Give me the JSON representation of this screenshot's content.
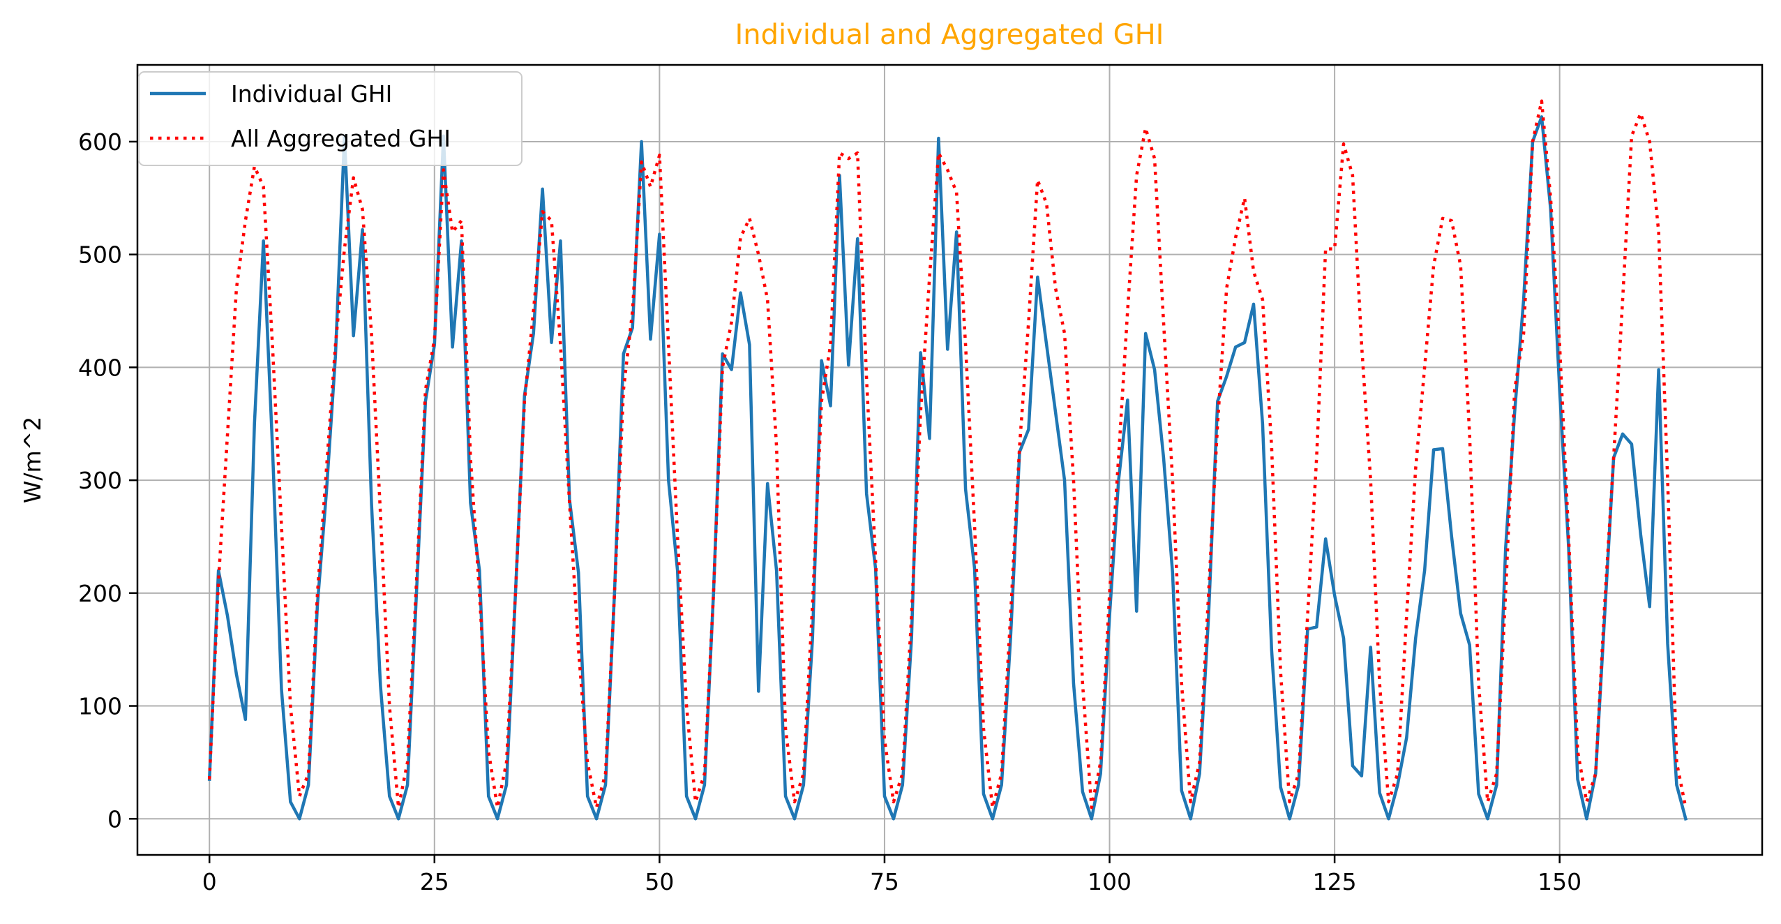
{
  "chart_data": {
    "type": "line",
    "title": "Individual and Aggregated GHI",
    "title_color": "#ffa500",
    "xlabel": "",
    "ylabel": "W/m^2",
    "xlim": [
      -8,
      172.5
    ],
    "ylim": [
      -32,
      668
    ],
    "xticks": [
      0,
      25,
      50,
      75,
      100,
      125,
      150
    ],
    "yticks": [
      0,
      100,
      200,
      300,
      400,
      500,
      600
    ],
    "grid": true,
    "legend_position": "upper-left",
    "series": [
      {
        "name": "Individual GHI",
        "color": "#1f77b4",
        "style": "solid",
        "x": [
          0,
          1,
          2,
          3,
          4,
          5,
          6,
          7,
          8,
          9,
          10,
          11,
          12,
          13,
          14,
          15,
          16,
          17,
          18,
          19,
          20,
          21,
          22,
          23,
          24,
          25,
          26,
          27,
          28,
          29,
          30,
          31,
          32,
          33,
          34,
          35,
          36,
          37,
          38,
          39,
          40,
          41,
          42,
          43,
          44,
          45,
          46,
          47,
          48,
          49,
          50,
          51,
          52,
          53,
          54,
          55,
          56,
          57,
          58,
          59,
          60,
          61,
          62,
          63,
          64,
          65,
          66,
          67,
          68,
          69,
          70,
          71,
          72,
          73,
          74,
          75,
          76,
          77,
          78,
          79,
          80,
          81,
          82,
          83,
          84,
          85,
          86,
          87,
          88,
          89,
          90,
          91,
          92,
          93,
          94,
          95,
          96,
          97,
          98,
          99,
          100,
          101,
          102,
          103,
          104,
          105,
          106,
          107,
          108,
          109,
          110,
          111,
          112,
          113,
          114,
          115,
          116,
          117,
          118,
          119,
          120,
          121,
          122,
          123,
          124,
          125,
          126,
          127,
          128,
          129,
          130,
          131,
          132,
          133,
          134,
          135,
          136,
          137,
          138,
          139,
          140,
          141,
          142,
          143,
          144,
          145,
          146,
          147,
          148,
          149,
          150,
          151,
          152,
          153,
          154,
          155,
          156,
          157,
          158,
          159,
          160,
          161,
          162,
          163,
          164
        ],
        "values": [
          35,
          220,
          180,
          128,
          88,
          350,
          512,
          330,
          115,
          15,
          0,
          30,
          190,
          290,
          410,
          605,
          428,
          522,
          280,
          118,
          20,
          0,
          30,
          200,
          370,
          420,
          605,
          418,
          512,
          280,
          220,
          20,
          0,
          30,
          200,
          375,
          430,
          558,
          422,
          512,
          283,
          218,
          20,
          0,
          30,
          200,
          412,
          435,
          600,
          425,
          518,
          300,
          220,
          20,
          0,
          30,
          200,
          412,
          398,
          466,
          420,
          113,
          297,
          220,
          20,
          0,
          30,
          160,
          406,
          366,
          570,
          402,
          514,
          288,
          222,
          20,
          0,
          30,
          160,
          413,
          337,
          603,
          416,
          520,
          292,
          222,
          22,
          0,
          30,
          160,
          325,
          345,
          480,
          420,
          360,
          300,
          120,
          24,
          0,
          40,
          180,
          300,
          371,
          184,
          430,
          398,
          320,
          218,
          25,
          0,
          40,
          180,
          370,
          392,
          418,
          422,
          456,
          350,
          150,
          28,
          0,
          30,
          168,
          170,
          248,
          198,
          160,
          47,
          38,
          152,
          23,
          0,
          30,
          72,
          160,
          220,
          327,
          328,
          250,
          182,
          154,
          22,
          0,
          30,
          240,
          360,
          460,
          600,
          622,
          540,
          380,
          240,
          35,
          0,
          40,
          180,
          320,
          341,
          332,
          252,
          188,
          398,
          155,
          30,
          0
        ]
      },
      {
        "name": "All Aggregated GHI",
        "color": "#ff0000",
        "style": "dotted",
        "x": [
          0,
          1,
          2,
          3,
          4,
          5,
          6,
          7,
          8,
          9,
          10,
          11,
          12,
          13,
          14,
          15,
          16,
          17,
          18,
          19,
          20,
          21,
          22,
          23,
          24,
          25,
          26,
          27,
          28,
          29,
          30,
          31,
          32,
          33,
          34,
          35,
          36,
          37,
          38,
          39,
          40,
          41,
          42,
          43,
          44,
          45,
          46,
          47,
          48,
          49,
          50,
          51,
          52,
          53,
          54,
          55,
          56,
          57,
          58,
          59,
          60,
          61,
          62,
          63,
          64,
          65,
          66,
          67,
          68,
          69,
          70,
          71,
          72,
          73,
          74,
          75,
          76,
          77,
          78,
          79,
          80,
          81,
          82,
          83,
          84,
          85,
          86,
          87,
          88,
          89,
          90,
          91,
          92,
          93,
          94,
          95,
          96,
          97,
          98,
          99,
          100,
          101,
          102,
          103,
          104,
          105,
          106,
          107,
          108,
          109,
          110,
          111,
          112,
          113,
          114,
          115,
          116,
          117,
          118,
          119,
          120,
          121,
          122,
          123,
          124,
          125,
          126,
          127,
          128,
          129,
          130,
          131,
          132,
          133,
          134,
          135,
          136,
          137,
          138,
          139,
          140,
          141,
          142,
          143,
          144,
          145,
          146,
          147,
          148,
          149,
          150,
          151,
          152,
          153,
          154,
          155,
          156,
          157,
          158,
          159,
          160,
          161,
          162,
          163,
          164
        ],
        "values": [
          35,
          210,
          340,
          470,
          530,
          578,
          560,
          420,
          260,
          100,
          20,
          40,
          200,
          310,
          420,
          505,
          568,
          540,
          430,
          270,
          100,
          10,
          50,
          210,
          380,
          425,
          575,
          520,
          530,
          320,
          200,
          60,
          10,
          50,
          200,
          370,
          450,
          538,
          530,
          420,
          280,
          150,
          50,
          10,
          40,
          200,
          380,
          450,
          582,
          560,
          588,
          420,
          250,
          100,
          15,
          40,
          200,
          400,
          440,
          515,
          532,
          500,
          460,
          330,
          80,
          15,
          40,
          190,
          370,
          420,
          590,
          585,
          590,
          390,
          230,
          70,
          15,
          40,
          180,
          360,
          480,
          590,
          575,
          555,
          420,
          260,
          80,
          10,
          40,
          180,
          330,
          440,
          566,
          545,
          470,
          430,
          300,
          120,
          10,
          50,
          200,
          320,
          450,
          570,
          612,
          585,
          440,
          300,
          120,
          15,
          50,
          200,
          350,
          470,
          515,
          550,
          485,
          460,
          330,
          130,
          15,
          40,
          180,
          320,
          505,
          505,
          598,
          570,
          420,
          300,
          120,
          15,
          40,
          180,
          310,
          400,
          490,
          532,
          530,
          490,
          340,
          120,
          15,
          40,
          200,
          380,
          430,
          600,
          636,
          550,
          420,
          250,
          60,
          15,
          40,
          190,
          320,
          460,
          605,
          625,
          600,
          520,
          300,
          50,
          10
        ]
      }
    ]
  }
}
